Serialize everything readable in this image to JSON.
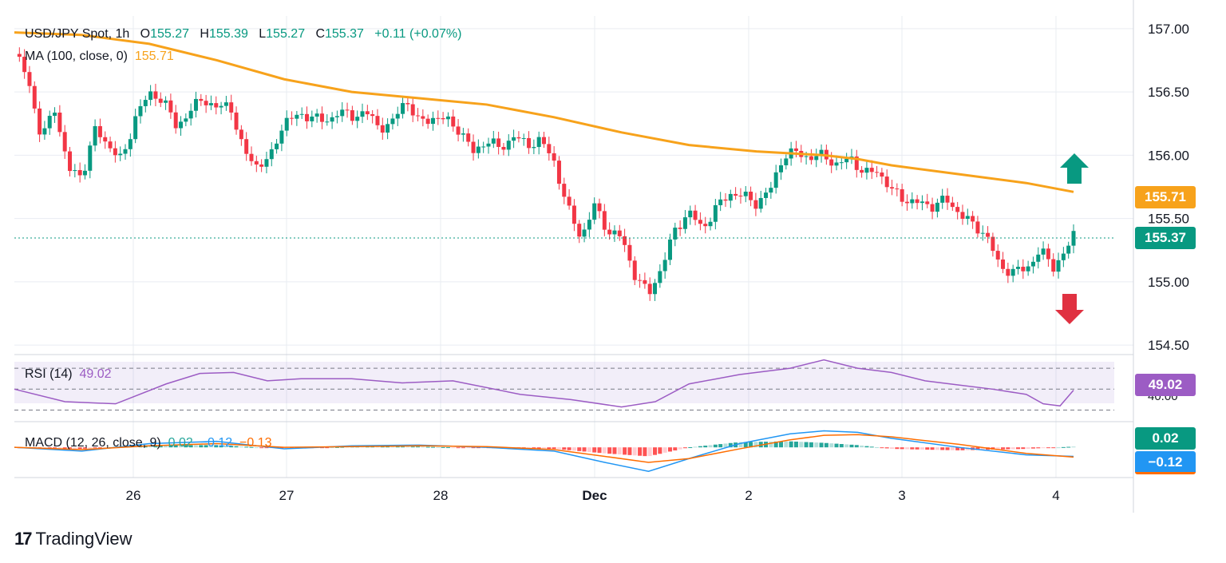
{
  "header": {
    "symbol": "USD/JPY Spot, 1h",
    "o_label": "O",
    "o_value": "155.27",
    "h_label": "H",
    "h_value": "155.39",
    "l_label": "L",
    "l_value": "155.27",
    "c_label": "C",
    "c_value": "155.37",
    "change": "+0.11 (+0.07%)"
  },
  "ma": {
    "label": "MA (100, close, 0)",
    "value": "155.71"
  },
  "rsi": {
    "label": "RSI (14)",
    "value": "49.02",
    "tick": "40.00"
  },
  "macd": {
    "label": "MACD (12, 26, close, 9)",
    "v1": "0.02",
    "v2": "−0.12",
    "v3": "−0.13"
  },
  "price_tags": {
    "ma": "155.71",
    "last": "155.37",
    "rsi": "49.02",
    "macd_hist": "0.02",
    "macd_line": "−0.12"
  },
  "brand": {
    "logo": "17",
    "name": "TradingView"
  },
  "colors": {
    "up": "#089981",
    "down": "#f23645",
    "ma": "#f7a21b",
    "rsi": "#9c5cc4",
    "macd_line": "#2196f3",
    "signal_line": "#ff6d00",
    "grid": "#e9ecf2"
  },
  "chart_data": [
    {
      "type": "candlestick",
      "title": "USD/JPY Spot, 1h",
      "y_axis": {
        "ylim": [
          154.45,
          157.1
        ],
        "ticks": [
          "157.00",
          "156.50",
          "156.00",
          "155.50",
          "155.00",
          "154.50"
        ]
      },
      "x_axis": {
        "ticks": [
          "26",
          "27",
          "28",
          "Dec",
          "2",
          "3",
          "4"
        ]
      },
      "path_points": [
        [
          0,
          156.8
        ],
        [
          8,
          156.62
        ],
        [
          16,
          156.12
        ],
        [
          24,
          156.38
        ],
        [
          32,
          155.88
        ],
        [
          40,
          155.84
        ],
        [
          48,
          156.2
        ],
        [
          56,
          156.08
        ],
        [
          64,
          155.95
        ],
        [
          72,
          156.32
        ],
        [
          80,
          156.48
        ],
        [
          88,
          156.45
        ],
        [
          96,
          156.22
        ],
        [
          104,
          156.35
        ],
        [
          112,
          156.45
        ],
        [
          120,
          156.37
        ],
        [
          128,
          156.4
        ],
        [
          136,
          156.02
        ],
        [
          144,
          155.92
        ],
        [
          152,
          155.98
        ],
        [
          160,
          156.28
        ],
        [
          168,
          156.3
        ],
        [
          176,
          156.32
        ],
        [
          184,
          156.25
        ],
        [
          192,
          156.35
        ],
        [
          200,
          156.3
        ],
        [
          208,
          156.35
        ],
        [
          216,
          156.22
        ],
        [
          224,
          156.25
        ],
        [
          232,
          156.45
        ],
        [
          240,
          156.25
        ],
        [
          248,
          156.3
        ],
        [
          256,
          156.28
        ],
        [
          264,
          156.2
        ],
        [
          272,
          156.02
        ],
        [
          280,
          156.12
        ],
        [
          288,
          156.05
        ],
        [
          296,
          156.15
        ],
        [
          304,
          156.08
        ],
        [
          312,
          156.12
        ],
        [
          320,
          155.95
        ],
        [
          328,
          155.58
        ],
        [
          336,
          155.35
        ],
        [
          344,
          155.6
        ],
        [
          352,
          155.4
        ],
        [
          360,
          155.35
        ],
        [
          368,
          155.05
        ],
        [
          376,
          154.9
        ],
        [
          384,
          155.12
        ],
        [
          392,
          155.42
        ],
        [
          400,
          155.55
        ],
        [
          408,
          155.42
        ],
        [
          416,
          155.58
        ],
        [
          424,
          155.7
        ],
        [
          432,
          155.68
        ],
        [
          440,
          155.62
        ],
        [
          448,
          155.72
        ],
        [
          456,
          156.0
        ],
        [
          464,
          156.02
        ],
        [
          472,
          155.98
        ],
        [
          480,
          156.0
        ],
        [
          488,
          155.92
        ],
        [
          496,
          155.98
        ],
        [
          504,
          155.85
        ],
        [
          512,
          155.88
        ],
        [
          520,
          155.72
        ],
        [
          528,
          155.65
        ],
        [
          536,
          155.62
        ],
        [
          544,
          155.6
        ],
        [
          552,
          155.65
        ],
        [
          560,
          155.55
        ],
        [
          568,
          155.45
        ],
        [
          576,
          155.38
        ],
        [
          584,
          155.12
        ],
        [
          592,
          155.08
        ],
        [
          600,
          155.1
        ],
        [
          608,
          155.25
        ],
        [
          616,
          155.12
        ],
        [
          624,
          155.25
        ],
        [
          628,
          155.37
        ]
      ],
      "moving_average": [
        [
          0,
          156.97
        ],
        [
          40,
          156.95
        ],
        [
          80,
          156.88
        ],
        [
          120,
          156.75
        ],
        [
          160,
          156.6
        ],
        [
          200,
          156.5
        ],
        [
          240,
          156.45
        ],
        [
          280,
          156.4
        ],
        [
          320,
          156.3
        ],
        [
          360,
          156.18
        ],
        [
          400,
          156.08
        ],
        [
          440,
          156.03
        ],
        [
          480,
          156.0
        ],
        [
          500,
          155.97
        ],
        [
          520,
          155.92
        ],
        [
          560,
          155.85
        ],
        [
          600,
          155.78
        ],
        [
          628,
          155.71
        ]
      ],
      "last_price": 155.37
    },
    {
      "type": "line",
      "title": "RSI (14)",
      "ylim": [
        22,
        80
      ],
      "levels": [
        70,
        50,
        30
      ],
      "values": [
        [
          0,
          50
        ],
        [
          30,
          38
        ],
        [
          60,
          36
        ],
        [
          90,
          55
        ],
        [
          110,
          65
        ],
        [
          130,
          66
        ],
        [
          150,
          58
        ],
        [
          170,
          60
        ],
        [
          200,
          60
        ],
        [
          230,
          56
        ],
        [
          260,
          58
        ],
        [
          300,
          45
        ],
        [
          330,
          40
        ],
        [
          360,
          33
        ],
        [
          380,
          38
        ],
        [
          400,
          55
        ],
        [
          430,
          64
        ],
        [
          460,
          70
        ],
        [
          480,
          78
        ],
        [
          500,
          70
        ],
        [
          520,
          66
        ],
        [
          540,
          58
        ],
        [
          560,
          54
        ],
        [
          580,
          50
        ],
        [
          600,
          45
        ],
        [
          610,
          36
        ],
        [
          620,
          34
        ],
        [
          628,
          49
        ]
      ]
    },
    {
      "type": "line",
      "title": "MACD (12, 26, close, 9)",
      "ylim": [
        -0.36,
        0.3
      ],
      "macd": [
        [
          0,
          0.0
        ],
        [
          40,
          -0.05
        ],
        [
          80,
          0.05
        ],
        [
          120,
          0.08
        ],
        [
          160,
          -0.02
        ],
        [
          200,
          0.02
        ],
        [
          240,
          0.03
        ],
        [
          280,
          0.0
        ],
        [
          320,
          -0.05
        ],
        [
          350,
          -0.2
        ],
        [
          376,
          -0.32
        ],
        [
          400,
          -0.15
        ],
        [
          430,
          0.05
        ],
        [
          460,
          0.18
        ],
        [
          480,
          0.22
        ],
        [
          500,
          0.2
        ],
        [
          520,
          0.12
        ],
        [
          560,
          0.0
        ],
        [
          600,
          -0.1
        ],
        [
          628,
          -0.12
        ]
      ],
      "signal": [
        [
          0,
          0.0
        ],
        [
          40,
          -0.03
        ],
        [
          80,
          0.02
        ],
        [
          120,
          0.05
        ],
        [
          160,
          0.0
        ],
        [
          200,
          0.01
        ],
        [
          240,
          0.02
        ],
        [
          280,
          0.01
        ],
        [
          320,
          -0.03
        ],
        [
          350,
          -0.12
        ],
        [
          376,
          -0.2
        ],
        [
          400,
          -0.15
        ],
        [
          430,
          -0.02
        ],
        [
          460,
          0.1
        ],
        [
          480,
          0.16
        ],
        [
          500,
          0.17
        ],
        [
          520,
          0.14
        ],
        [
          560,
          0.04
        ],
        [
          600,
          -0.08
        ],
        [
          628,
          -0.13
        ]
      ]
    }
  ]
}
